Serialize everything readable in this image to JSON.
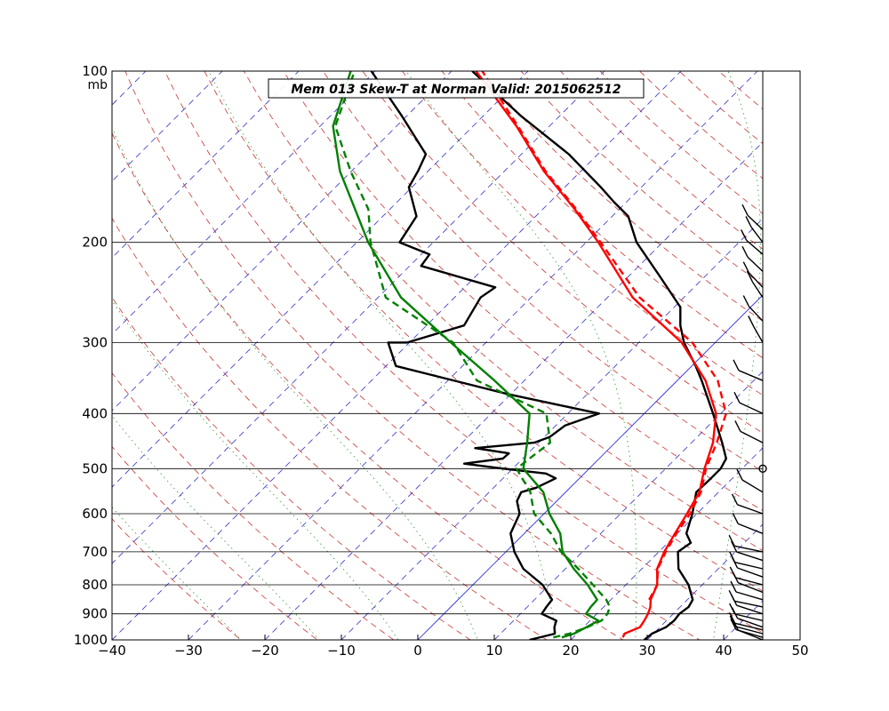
{
  "chart_data": {
    "type": "skew-t",
    "title": "Mem 013  Skew-T at Norman   Valid: 2015062512",
    "x_axis": {
      "range": [
        -40,
        50
      ],
      "ticks": [
        -40,
        -30,
        -20,
        -10,
        0,
        10,
        20,
        30,
        40,
        50
      ],
      "tick_labels": [
        "−40",
        "−30",
        "−20",
        "−10",
        "0",
        "10",
        "20",
        "30",
        "40",
        "50"
      ]
    },
    "y_axis": {
      "scale": "log",
      "range": [
        1000,
        100
      ],
      "ticks": [
        100,
        200,
        300,
        400,
        500,
        600,
        700,
        800,
        900,
        1000
      ],
      "tick_labels": [
        "100",
        "200",
        "300",
        "400",
        "500",
        "600",
        "700",
        "800",
        "900",
        "1000"
      ],
      "unit_label": "mb"
    },
    "grid": true,
    "colors": {
      "temperature": "#ff0000",
      "dewpoint": "#008000",
      "member_profile": "#000000",
      "dry_adiabat": "#cc3333",
      "isotherm": "#3333cc",
      "zero_isotherm": "#2222dd",
      "moist_adiabat": "#339933"
    },
    "series": [
      {
        "style": "solid",
        "color": "#000000",
        "points": [
          [
            1000,
            29.6
          ],
          [
            975,
            29.8
          ],
          [
            950,
            30.8
          ],
          [
            925,
            31.0
          ],
          [
            900,
            30.8
          ],
          [
            875,
            31.1
          ],
          [
            850,
            30.7
          ],
          [
            800,
            28.2
          ],
          [
            750,
            24.8
          ],
          [
            700,
            22.5
          ],
          [
            675,
            23.0
          ],
          [
            650,
            21.2
          ],
          [
            600,
            19.4
          ],
          [
            550,
            17.1
          ],
          [
            520,
            17.2
          ],
          [
            500,
            17.2
          ],
          [
            480,
            16.6
          ],
          [
            450,
            14.0
          ],
          [
            400,
            9.0
          ],
          [
            350,
            3.2
          ],
          [
            330,
            0.5
          ],
          [
            300,
            -4.1
          ],
          [
            280,
            -6.8
          ],
          [
            260,
            -9.2
          ],
          [
            230,
            -15.8
          ],
          [
            200,
            -23.4
          ],
          [
            180,
            -27.9
          ],
          [
            170,
            -31.6
          ],
          [
            160,
            -35.3
          ],
          [
            140,
            -43.8
          ],
          [
            120,
            -55.0
          ],
          [
            100,
            -67.3
          ]
        ]
      },
      {
        "style": "solid",
        "color": "#000000",
        "points": [
          [
            1000,
            14.6
          ],
          [
            975,
            17.1
          ],
          [
            950,
            16.2
          ],
          [
            925,
            15.6
          ],
          [
            900,
            12.8
          ],
          [
            875,
            12.5
          ],
          [
            850,
            12.3
          ],
          [
            800,
            9.1
          ],
          [
            750,
            4.5
          ],
          [
            700,
            1.1
          ],
          [
            650,
            -1.8
          ],
          [
            600,
            -3.2
          ],
          [
            570,
            -5.2
          ],
          [
            550,
            -5.8
          ],
          [
            540,
            -4.4
          ],
          [
            520,
            -3.1
          ],
          [
            510,
            -5.0
          ],
          [
            500,
            -11.2
          ],
          [
            490,
            -17.0
          ],
          [
            480,
            -12.6
          ],
          [
            470,
            -12.5
          ],
          [
            460,
            -17.6
          ],
          [
            450,
            -10.6
          ],
          [
            440,
            -9.3
          ],
          [
            420,
            -8.8
          ],
          [
            400,
            -5.9
          ],
          [
            370,
            -20.3
          ],
          [
            330,
            -38.7
          ],
          [
            300,
            -42.8
          ],
          [
            300,
            -40.3
          ],
          [
            280,
            -35.1
          ],
          [
            250,
            -36.6
          ],
          [
            240,
            -36.0
          ],
          [
            220,
            -48.5
          ],
          [
            210,
            -48.9
          ],
          [
            200,
            -54.4
          ],
          [
            180,
            -55.6
          ],
          [
            160,
            -60.4
          ],
          [
            150,
            -61.3
          ],
          [
            140,
            -62.5
          ],
          [
            120,
            -70.6
          ],
          [
            100,
            -80.5
          ]
        ]
      },
      {
        "style": "solid",
        "color": "#ff0000",
        "points": [
          [
            990,
            26.5
          ],
          [
            975,
            26.2
          ],
          [
            950,
            27.4
          ],
          [
            925,
            27.1
          ],
          [
            900,
            26.7
          ],
          [
            875,
            26.1
          ],
          [
            850,
            25.2
          ],
          [
            800,
            24.1
          ],
          [
            750,
            22.0
          ],
          [
            700,
            20.7
          ],
          [
            650,
            19.7
          ],
          [
            600,
            18.7
          ],
          [
            550,
            17.5
          ],
          [
            500,
            15.1
          ],
          [
            450,
            12.8
          ],
          [
            400,
            9.4
          ],
          [
            350,
            3.7
          ],
          [
            300,
            -4.4
          ],
          [
            250,
            -16.7
          ],
          [
            200,
            -28.4
          ],
          [
            175,
            -35.8
          ],
          [
            150,
            -44.8
          ],
          [
            125,
            -54.3
          ],
          [
            100,
            -66.8
          ]
        ]
      },
      {
        "style": "dashed",
        "color": "#ff0000",
        "points": [
          [
            850,
            25.0
          ],
          [
            800,
            24.1
          ],
          [
            750,
            22.1
          ],
          [
            700,
            20.9
          ],
          [
            650,
            19.9
          ],
          [
            600,
            19.1
          ],
          [
            550,
            17.7
          ],
          [
            500,
            15.3
          ],
          [
            450,
            13.3
          ],
          [
            400,
            10.7
          ],
          [
            350,
            5.3
          ],
          [
            300,
            -3.0
          ],
          [
            250,
            -15.8
          ],
          [
            200,
            -28.1
          ],
          [
            175,
            -35.6
          ],
          [
            150,
            -44.6
          ],
          [
            125,
            -54.1
          ],
          [
            100,
            -66.0
          ]
        ]
      },
      {
        "style": "solid",
        "color": "#008000",
        "points": [
          [
            990,
            18.5
          ],
          [
            975,
            19.6
          ],
          [
            950,
            20.4
          ],
          [
            925,
            21.1
          ],
          [
            900,
            18.6
          ],
          [
            875,
            18.3
          ],
          [
            850,
            18.2
          ],
          [
            800,
            15.0
          ],
          [
            750,
            11.1
          ],
          [
            700,
            7.4
          ],
          [
            650,
            4.7
          ],
          [
            600,
            0.7
          ],
          [
            550,
            -2.9
          ],
          [
            500,
            -8.6
          ],
          [
            450,
            -11.5
          ],
          [
            400,
            -15.0
          ],
          [
            350,
            -23.9
          ],
          [
            300,
            -34.6
          ],
          [
            250,
            -47.0
          ],
          [
            200,
            -58.5
          ],
          [
            150,
            -71.5
          ],
          [
            125,
            -78.3
          ],
          [
            100,
            -83.2
          ]
        ]
      },
      {
        "style": "dashed",
        "color": "#008000",
        "points": [
          [
            990,
            17.4
          ],
          [
            975,
            19.0
          ],
          [
            950,
            20.5
          ],
          [
            925,
            21.5
          ],
          [
            900,
            21.4
          ],
          [
            875,
            20.8
          ],
          [
            850,
            19.4
          ],
          [
            800,
            15.7
          ],
          [
            750,
            11.7
          ],
          [
            700,
            7.2
          ],
          [
            650,
            3.5
          ],
          [
            600,
            -1.3
          ],
          [
            550,
            -4.6
          ],
          [
            500,
            -9.5
          ],
          [
            450,
            -8.5
          ],
          [
            400,
            -12.8
          ],
          [
            350,
            -26.2
          ],
          [
            300,
            -34.3
          ],
          [
            250,
            -49.0
          ],
          [
            200,
            -58.2
          ],
          [
            175,
            -62.8
          ],
          [
            150,
            -70.1
          ],
          [
            125,
            -78.0
          ],
          [
            100,
            -82.7
          ]
        ]
      }
    ],
    "wind_barbs": {
      "levels": [
        1000,
        990,
        975,
        960,
        950,
        925,
        900,
        875,
        850,
        825,
        800,
        775,
        750,
        725,
        700,
        650,
        600,
        550,
        500,
        450,
        400,
        350,
        300,
        275,
        250,
        240,
        225,
        210,
        200,
        190
      ],
      "calm_level": 500
    }
  }
}
